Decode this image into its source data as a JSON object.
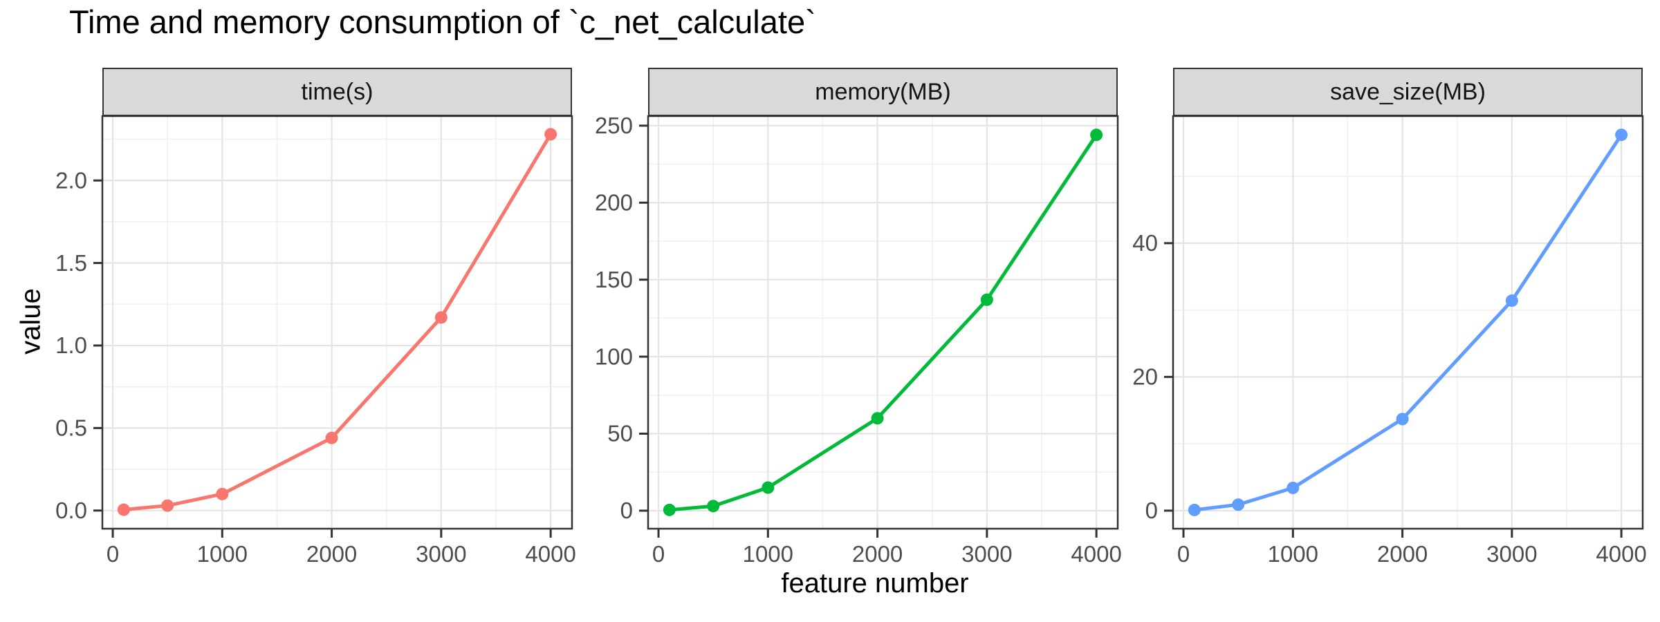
{
  "title": "Time and memory consumption of `c_net_calculate`",
  "chart_data": {
    "type": "line",
    "title": "Time and memory consumption of `c_net_calculate`",
    "xlabel": "feature number",
    "ylabel": "value",
    "grid": true,
    "legend": "none",
    "x": [
      100,
      500,
      1000,
      2000,
      3000,
      4000
    ],
    "xlim": [
      -95,
      4195
    ],
    "x_ticks": [
      0,
      1000,
      2000,
      3000,
      4000
    ],
    "x_tick_labels": [
      "0",
      "1000",
      "2000",
      "3000",
      "4000"
    ],
    "facets": [
      {
        "label": "time(s)",
        "color": "#F8766D",
        "values": [
          0.005,
          0.03,
          0.1,
          0.44,
          1.17,
          2.28
        ],
        "ylim": [
          -0.11,
          2.39
        ],
        "y_ticks": [
          0,
          0.5,
          1,
          1.5,
          2
        ],
        "y_tick_labels": [
          "0.0",
          "0.5",
          "1.0",
          "1.5",
          "2.0"
        ]
      },
      {
        "label": "memory(MB)",
        "color": "#00BA38",
        "values": [
          0.5,
          3,
          15,
          60,
          137,
          244
        ],
        "ylim": [
          -11.7,
          256.2
        ],
        "y_ticks": [
          0,
          50,
          100,
          150,
          200,
          250
        ],
        "y_tick_labels": [
          "0",
          "50",
          "100",
          "150",
          "200",
          "250"
        ]
      },
      {
        "label": "save_size(MB)",
        "color": "#619CFF",
        "values": [
          0.1,
          0.9,
          3.4,
          13.7,
          31.4,
          56.2
        ],
        "ylim": [
          -2.7,
          59.0
        ],
        "y_ticks": [
          0,
          20,
          40
        ],
        "y_tick_labels": [
          "0",
          "20",
          "40"
        ]
      }
    ],
    "theme": {
      "strip_fill": "#D9D9D9",
      "strip_border": "#333333",
      "panel_border": "#333333",
      "grid_major": "#E4E4E4",
      "grid_minor": "#F1F1F1",
      "tick_color": "#333333",
      "tick_label_color": "#4D4D4D",
      "text_color": "#000000",
      "background": "#FFFFFF"
    }
  }
}
